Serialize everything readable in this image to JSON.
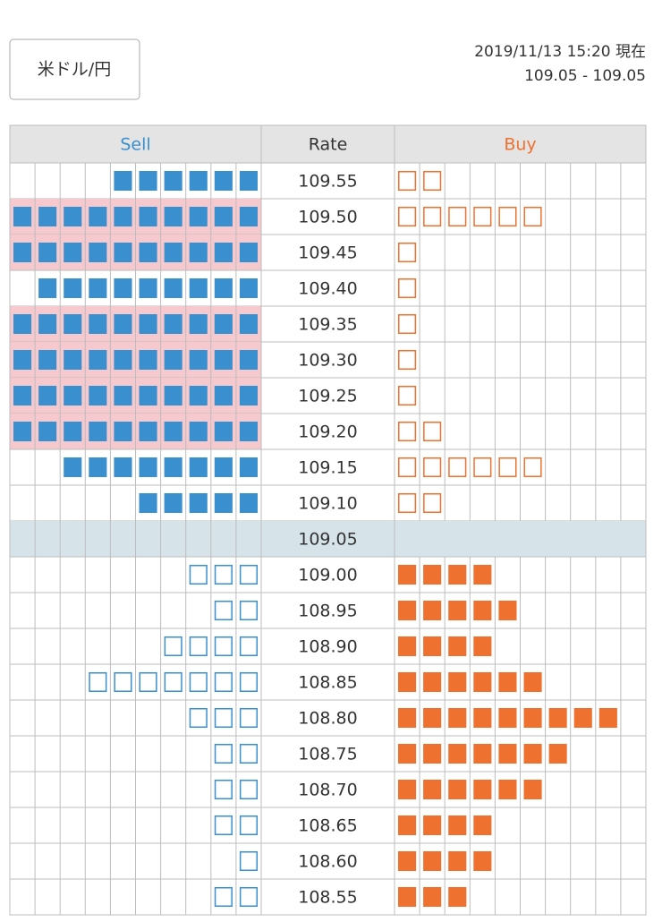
{
  "header": {
    "pair_button": "米ドル/円",
    "timestamp": "2019/11/13 15:20 現在",
    "price": "109.05 - 109.05"
  },
  "table": {
    "columns": [
      "Sell",
      "Rate",
      "Buy"
    ],
    "rows": [
      {
        "rate": "109.55",
        "sell": 6,
        "buy": 2
      },
      {
        "rate": "109.50",
        "sell": 10,
        "buy": 6
      },
      {
        "rate": "109.45",
        "sell": 10,
        "buy": 1
      },
      {
        "rate": "109.40",
        "sell": 9,
        "buy": 1
      },
      {
        "rate": "109.35",
        "sell": 10,
        "buy": 1
      },
      {
        "rate": "109.30",
        "sell": 10,
        "buy": 1
      },
      {
        "rate": "109.25",
        "sell": 10,
        "buy": 1
      },
      {
        "rate": "109.20",
        "sell": 10,
        "buy": 2
      },
      {
        "rate": "109.15",
        "sell": 8,
        "buy": 6
      },
      {
        "rate": "109.10",
        "sell": 5,
        "buy": 2
      },
      {
        "rate": "109.05",
        "sell": 0,
        "buy": 0
      },
      {
        "rate": "109.00",
        "sell": 3,
        "buy": 4
      },
      {
        "rate": "108.95",
        "sell": 2,
        "buy": 5
      },
      {
        "rate": "108.90",
        "sell": 4,
        "buy": 4
      },
      {
        "rate": "108.85",
        "sell": 7,
        "buy": 6
      },
      {
        "rate": "108.80",
        "sell": 3,
        "buy": 9
      },
      {
        "rate": "108.75",
        "sell": 2,
        "buy": 7
      },
      {
        "rate": "108.70",
        "sell": 2,
        "buy": 6
      },
      {
        "rate": "108.65",
        "sell": 2,
        "buy": 4
      },
      {
        "rate": "108.60",
        "sell": 1,
        "buy": 4
      },
      {
        "rate": "108.55",
        "sell": 2,
        "buy": 3
      }
    ]
  }
}
